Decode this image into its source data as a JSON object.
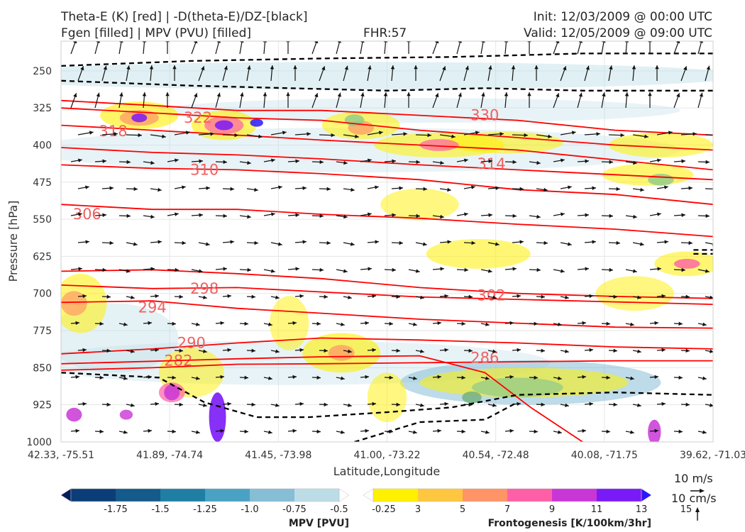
{
  "header": {
    "title_line1": "Theta-E (K) [red] | -D(theta-E)/DZ-[black]",
    "title_line2": "Fgen [filled] | MPV (PVU) [filled]",
    "fhr": "FHR:57",
    "init": "Init: 12/03/2009 @ 00:00 UTC",
    "valid": "Valid: 12/05/2009 @ 09:00 UTC"
  },
  "colors": {
    "theta_e": "#ff0000",
    "stability": "#000000",
    "mpv_outline": "#9fb3cf",
    "background": "#ffffff"
  },
  "chart_data": {
    "type": "cross-section",
    "xlabel": "Latitude,Longitude",
    "ylabel": "Pressure [hPa]",
    "y_axis": {
      "ticks": [
        250,
        325,
        400,
        475,
        550,
        625,
        700,
        775,
        850,
        925,
        1000
      ],
      "range": [
        1000,
        190
      ],
      "direction": "inverted"
    },
    "x_axis": {
      "ticks": [
        "42.33, -75.51",
        "41.89, -74.74",
        "41.45, -73.98",
        "41.00, -73.22",
        "40.54, -72.48",
        "40.08, -71.75",
        "39.62, -71.03"
      ]
    },
    "theta_e_contours": [
      {
        "value": 282,
        "label": "282",
        "points": [
          [
            0,
            855
          ],
          [
            14,
            850
          ],
          [
            27,
            843
          ],
          [
            40,
            842
          ],
          [
            55,
            840
          ],
          [
            70,
            838
          ],
          [
            85,
            836
          ],
          [
            100,
            836
          ]
        ]
      },
      {
        "value": 286,
        "label": "286",
        "points": [
          [
            0,
            842
          ],
          [
            14,
            837
          ],
          [
            27,
            832
          ],
          [
            40,
            828
          ],
          [
            55,
            826
          ],
          [
            65,
            860
          ],
          [
            72,
            930
          ],
          [
            80,
            1000
          ]
        ]
      },
      {
        "value": 290,
        "label": "290",
        "points": [
          [
            0,
            822
          ],
          [
            14,
            812
          ],
          [
            27,
            800
          ],
          [
            40,
            790
          ],
          [
            55,
            794
          ],
          [
            70,
            800
          ],
          [
            85,
            808
          ],
          [
            100,
            812
          ]
        ]
      },
      {
        "value": 294,
        "label": "294",
        "points": [
          [
            0,
            718
          ],
          [
            14,
            715
          ],
          [
            27,
            730
          ],
          [
            40,
            740
          ],
          [
            55,
            752
          ],
          [
            70,
            760
          ],
          [
            85,
            768
          ],
          [
            100,
            770
          ]
        ]
      },
      {
        "value": 298,
        "label": "298",
        "points": [
          [
            0,
            683
          ],
          [
            14,
            690
          ],
          [
            27,
            688
          ],
          [
            40,
            697
          ],
          [
            55,
            707
          ],
          [
            70,
            712
          ],
          [
            85,
            717
          ],
          [
            100,
            722
          ]
        ]
      },
      {
        "value": 302,
        "label": "302",
        "points": [
          [
            0,
            655
          ],
          [
            14,
            652
          ],
          [
            27,
            660
          ],
          [
            40,
            670
          ],
          [
            55,
            688
          ],
          [
            70,
            700
          ],
          [
            85,
            706
          ],
          [
            100,
            710
          ]
        ]
      },
      {
        "value": 306,
        "label": "306",
        "points": [
          [
            0,
            520
          ],
          [
            14,
            530
          ],
          [
            27,
            530
          ],
          [
            40,
            540
          ],
          [
            55,
            548
          ],
          [
            70,
            560
          ],
          [
            85,
            570
          ],
          [
            100,
            585
          ]
        ]
      },
      {
        "value": 310,
        "label": "310",
        "points": [
          [
            0,
            440
          ],
          [
            14,
            447
          ],
          [
            27,
            450
          ],
          [
            40,
            458
          ],
          [
            55,
            470
          ],
          [
            70,
            490
          ],
          [
            85,
            500
          ],
          [
            100,
            520
          ]
        ]
      },
      {
        "value": 314,
        "label": "314",
        "points": [
          [
            0,
            405
          ],
          [
            14,
            415
          ],
          [
            27,
            420
          ],
          [
            40,
            428
          ],
          [
            55,
            440
          ],
          [
            70,
            450
          ],
          [
            85,
            460
          ],
          [
            100,
            470
          ]
        ]
      },
      {
        "value": 318,
        "label": "318",
        "points": [
          [
            0,
            360
          ],
          [
            14,
            370
          ],
          [
            27,
            380
          ],
          [
            40,
            390
          ],
          [
            55,
            400
          ],
          [
            70,
            410
          ],
          [
            85,
            430
          ],
          [
            100,
            450
          ]
        ]
      },
      {
        "value": 322,
        "label": "322",
        "points": [
          [
            0,
            325
          ],
          [
            14,
            335
          ],
          [
            27,
            345
          ],
          [
            40,
            350
          ],
          [
            55,
            370
          ],
          [
            70,
            385
          ],
          [
            85,
            400
          ],
          [
            100,
            410
          ]
        ]
      },
      {
        "value": 330,
        "label": "330",
        "points": [
          [
            0,
            310
          ],
          [
            14,
            320
          ],
          [
            27,
            330
          ],
          [
            40,
            330
          ],
          [
            55,
            340
          ],
          [
            70,
            350
          ],
          [
            85,
            370
          ],
          [
            100,
            380
          ]
        ]
      }
    ],
    "mpv_colorbar": {
      "title": "MPV [PVU]",
      "ticks": [
        "-1.75",
        "-1.5",
        "-1.25",
        "-1.0",
        "-0.75",
        "-0.5",
        "-0.25"
      ],
      "colors": [
        "#071e5e",
        "#0b3e78",
        "#145a8a",
        "#1f7ea3",
        "#49a2c3",
        "#86bed6",
        "#bcdde7",
        "#ffffff"
      ]
    },
    "fgen_colorbar": {
      "title": "Frontogenesis [K/100km/3hr]",
      "ticks": [
        "3",
        "5",
        "7",
        "9",
        "11",
        "13",
        "15"
      ],
      "colors": [
        "#ffffff",
        "#fff000",
        "#ffc640",
        "#ff9466",
        "#ff5fa6",
        "#c936d6",
        "#7a1af6",
        "#2a16ff"
      ]
    },
    "reference_vectors": {
      "horizontal": "10 m/s",
      "vertical": "10 cm/s"
    }
  }
}
